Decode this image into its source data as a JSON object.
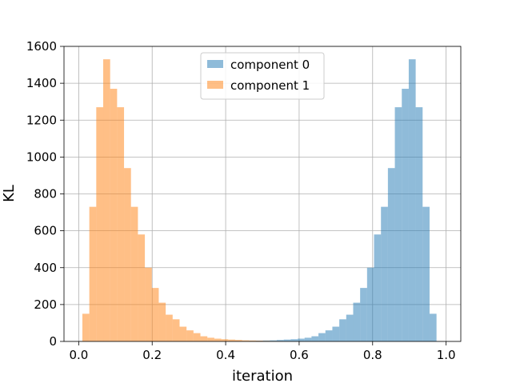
{
  "chart_data": {
    "type": "bar",
    "xlabel": "iteration",
    "ylabel": "KL",
    "xlim": [
      -0.04,
      1.04
    ],
    "ylim": [
      0,
      1600
    ],
    "xticks": [
      0.0,
      0.2,
      0.4,
      0.6,
      0.8,
      1.0
    ],
    "xtick_labels": [
      "0.0",
      "0.2",
      "0.4",
      "0.6",
      "0.8",
      "1.0"
    ],
    "yticks": [
      0,
      200,
      400,
      600,
      800,
      1000,
      1200,
      1400,
      1600
    ],
    "ytick_labels": [
      "0",
      "200",
      "400",
      "600",
      "800",
      "1000",
      "1200",
      "1400",
      "1600"
    ],
    "grid": true,
    "legend_position": "top-center",
    "bin_edges": [
      0.01,
      0.0289,
      0.0478,
      0.0667,
      0.0856,
      0.1045,
      0.1234,
      0.1423,
      0.1612,
      0.1801,
      0.199,
      0.2179,
      0.2368,
      0.2557,
      0.2746,
      0.2935,
      0.3124,
      0.3313,
      0.3502,
      0.3691,
      0.388,
      0.4069,
      0.4258,
      0.4447,
      0.4636,
      0.4825,
      0.5014,
      0.5203,
      0.5392,
      0.5581,
      0.577,
      0.5959,
      0.6148,
      0.6337,
      0.6526,
      0.6715,
      0.6904,
      0.7093,
      0.7282,
      0.7471,
      0.766,
      0.7849,
      0.8038,
      0.8227,
      0.8416,
      0.8605,
      0.8794,
      0.8983,
      0.9172,
      0.9361,
      0.955,
      0.9739,
      0.9928
    ],
    "series": [
      {
        "name": "component 0",
        "color": "#1f77b4",
        "alpha": 0.5,
        "values": [
          0,
          0,
          0,
          0,
          0,
          0,
          0,
          0,
          0,
          0,
          0,
          0,
          0,
          0,
          0,
          0,
          0,
          0,
          0,
          0,
          0,
          0,
          1,
          2,
          3,
          4,
          5,
          6,
          8,
          10,
          12,
          15,
          20,
          28,
          45,
          60,
          80,
          120,
          145,
          210,
          290,
          400,
          580,
          730,
          940,
          1270,
          1370,
          1530,
          1270,
          730,
          150,
          0
        ]
      },
      {
        "name": "component 1",
        "color": "#ff7f0e",
        "alpha": 0.5,
        "values": [
          150,
          730,
          1270,
          1530,
          1370,
          1270,
          940,
          730,
          580,
          400,
          290,
          210,
          145,
          120,
          80,
          60,
          45,
          28,
          20,
          15,
          12,
          10,
          8,
          6,
          5,
          4,
          3,
          2,
          1,
          0,
          0,
          0,
          0,
          0,
          0,
          0,
          0,
          0,
          0,
          0,
          0,
          0,
          0,
          0,
          0,
          0,
          0,
          0,
          0,
          0,
          0,
          0
        ]
      }
    ]
  }
}
